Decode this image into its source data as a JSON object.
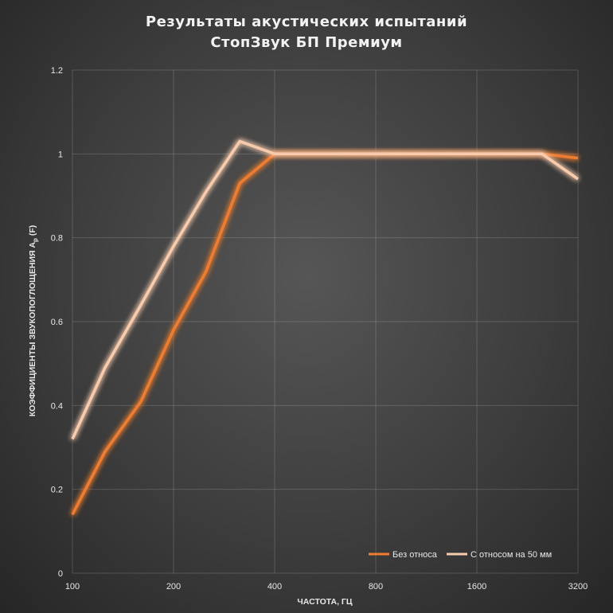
{
  "chart_data": {
    "type": "line",
    "title_lines": [
      "Результаты акустических испытаний",
      "СтопЗвук БП Премиум"
    ],
    "xlabel": "ЧАСТОТА, ГЦ",
    "ylabel_main": "КОЭФФИЦИЕНТЫ ЗВУКОПОГЛОЩЕНИЯ А",
    "ylabel_sub": "р",
    "ylabel_suffix": " (F)",
    "x_scale": "log2",
    "x": [
      100,
      125,
      160,
      200,
      250,
      315,
      400,
      500,
      630,
      800,
      1000,
      1250,
      1600,
      2000,
      2500,
      3200
    ],
    "x_tick_labels": [
      "100",
      "200",
      "400",
      "800",
      "1600",
      "3200"
    ],
    "x_tick_values": [
      100,
      200,
      400,
      800,
      1600,
      3200
    ],
    "y_tick_labels": [
      "0",
      "0.2",
      "0.4",
      "0.6",
      "0.8",
      "1",
      "1.2"
    ],
    "ylim": [
      0,
      1.2
    ],
    "grid": true,
    "legend_position": "bottom-right",
    "series": [
      {
        "name": "Без относа",
        "color": "#ed7d31",
        "values": [
          0.14,
          0.29,
          0.41,
          0.58,
          0.72,
          0.93,
          1.0,
          1.0,
          1.0,
          1.0,
          1.0,
          1.0,
          1.0,
          1.0,
          1.0,
          0.99
        ]
      },
      {
        "name": "С относом на 50 мм",
        "color": "#f8cbad",
        "values": [
          0.32,
          0.49,
          0.64,
          0.78,
          0.91,
          1.03,
          1.0,
          1.0,
          1.0,
          1.0,
          1.0,
          1.0,
          1.0,
          1.0,
          1.0,
          0.94
        ]
      }
    ]
  }
}
